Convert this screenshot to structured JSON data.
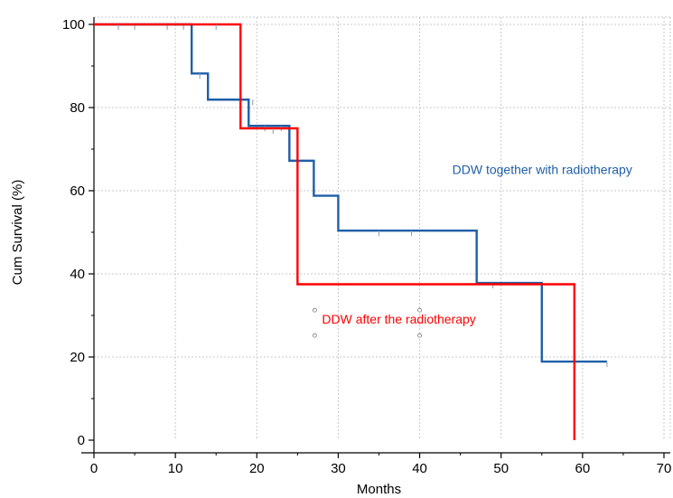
{
  "chart_data": {
    "type": "line",
    "subtype": "kaplan-meier-step",
    "title": "",
    "xlabel": "Months",
    "ylabel": "Cum Survival  (%)",
    "xlim": [
      0,
      70
    ],
    "ylim": [
      0,
      100
    ],
    "xticks": [
      0,
      10,
      20,
      30,
      40,
      50,
      60,
      70
    ],
    "yticks": [
      0,
      20,
      40,
      60,
      80,
      100
    ],
    "grid": true,
    "legend": "none",
    "series": [
      {
        "name": "DDW together with radiotherapy",
        "color": "#1f5fa8",
        "x": [
          0,
          12,
          12,
          14,
          14,
          19,
          19,
          24,
          24,
          27,
          27,
          30,
          30,
          47,
          47,
          55,
          55,
          63
        ],
        "y": [
          100,
          100,
          88.2,
          88.2,
          81.9,
          81.9,
          75.6,
          75.6,
          67.2,
          67.2,
          58.8,
          58.8,
          50.4,
          50.4,
          37.8,
          37.8,
          18.9,
          18.9
        ],
        "censored": [
          {
            "x": 5,
            "y": 100
          },
          {
            "x": 9,
            "y": 100
          },
          {
            "x": 11,
            "y": 100
          },
          {
            "x": 13,
            "y": 88.2
          },
          {
            "x": 19.5,
            "y": 81.9
          },
          {
            "x": 21,
            "y": 75.6
          },
          {
            "x": 23,
            "y": 75.6
          },
          {
            "x": 35,
            "y": 50.4
          },
          {
            "x": 39,
            "y": 50.4
          },
          {
            "x": 49,
            "y": 37.8
          },
          {
            "x": 63,
            "y": 18.9
          }
        ]
      },
      {
        "name": "DDW after the radiotherapy",
        "color": "#ff0000",
        "x": [
          0,
          18,
          18,
          25,
          25,
          59,
          59
        ],
        "y": [
          100,
          100,
          75,
          75,
          37.5,
          37.5,
          0
        ],
        "censored": [
          {
            "x": 3,
            "y": 100
          },
          {
            "x": 15,
            "y": 100
          },
          {
            "x": 22,
            "y": 75
          }
        ]
      }
    ],
    "annotations": [
      {
        "text": "DDW together with radiotherapy",
        "x": 44,
        "y": 64,
        "color": "#1f5fa8"
      },
      {
        "text": "DDW after the radiotherapy",
        "x": 28,
        "y": 28,
        "color": "#ff0000"
      }
    ]
  }
}
